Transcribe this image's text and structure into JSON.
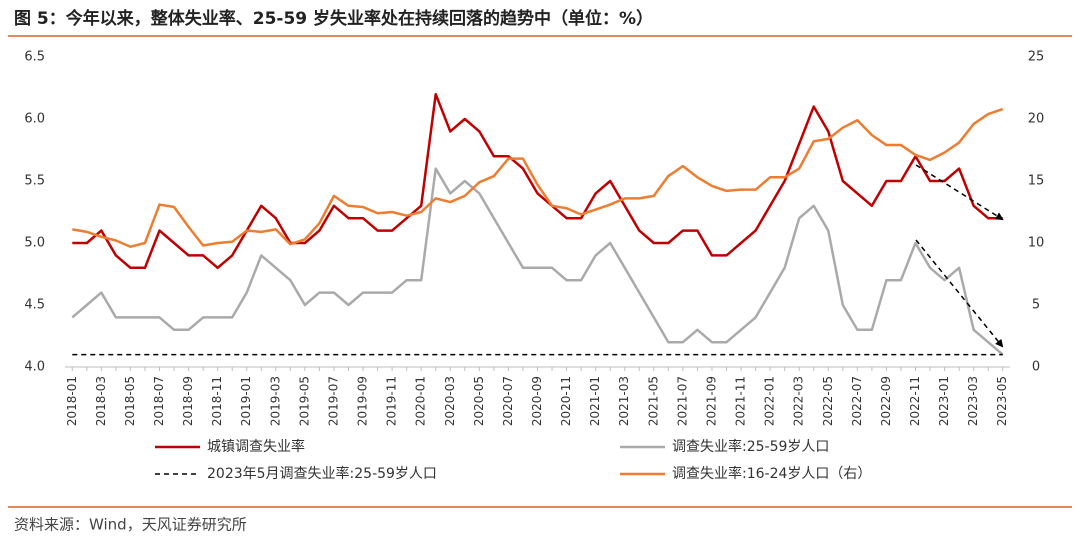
{
  "chart_data": {
    "type": "line",
    "title": "图 5：今年以来，整体失业率、25-59 岁失业率处在持续回落的趋势中（单位：%）",
    "source": "资料来源：Wind，天风证券研究所",
    "categories": [
      "2018-01",
      null,
      "2018-03",
      null,
      "2018-05",
      null,
      "2018-07",
      null,
      "2018-09",
      null,
      "2018-11",
      null,
      "2019-01",
      null,
      "2019-03",
      null,
      "2019-05",
      null,
      "2019-07",
      null,
      "2019-09",
      null,
      "2019-11",
      null,
      "2020-01",
      null,
      "2020-03",
      null,
      "2020-05",
      null,
      "2020-07",
      null,
      "2020-09",
      null,
      "2020-11",
      null,
      "2021-01",
      null,
      "2021-03",
      null,
      "2021-05",
      null,
      "2021-07",
      null,
      "2021-09",
      null,
      "2021-11",
      null,
      "2022-01",
      null,
      "2022-03",
      null,
      "2022-05",
      null,
      "2022-07",
      null,
      "2022-09",
      null,
      "2022-11",
      null,
      "2023-01",
      null,
      "2023-03",
      null,
      "2023-05"
    ],
    "series": [
      {
        "name": "城镇调查失业率",
        "color": "#c00000",
        "width": 2.5,
        "values": [
          5.0,
          5.0,
          5.1,
          4.9,
          4.8,
          4.8,
          5.1,
          5.0,
          4.9,
          4.9,
          4.8,
          4.9,
          5.1,
          5.3,
          5.2,
          5.0,
          5.0,
          5.1,
          5.3,
          5.2,
          5.2,
          5.1,
          5.1,
          5.2,
          5.3,
          6.2,
          5.9,
          6.0,
          5.9,
          5.7,
          5.7,
          5.6,
          5.4,
          5.3,
          5.2,
          5.2,
          5.4,
          5.5,
          5.3,
          5.1,
          5.0,
          5.0,
          5.1,
          5.1,
          4.9,
          4.9,
          5.0,
          5.1,
          5.3,
          5.5,
          5.8,
          6.1,
          5.9,
          5.5,
          5.4,
          5.3,
          5.5,
          5.5,
          5.7,
          5.5,
          5.5,
          5.6,
          5.3,
          5.2,
          5.2
        ]
      },
      {
        "name": "调查失业率:25-59岁人口",
        "color": "#aaaaaa",
        "width": 2.5,
        "values": [
          4.4,
          4.5,
          4.6,
          4.4,
          4.4,
          4.4,
          4.4,
          4.3,
          4.3,
          4.4,
          4.4,
          4.4,
          4.6,
          4.9,
          4.8,
          4.7,
          4.5,
          4.6,
          4.6,
          4.5,
          4.6,
          4.6,
          4.6,
          4.7,
          4.7,
          5.6,
          5.4,
          5.5,
          5.4,
          5.2,
          5.0,
          4.8,
          4.8,
          4.8,
          4.7,
          4.7,
          4.9,
          5.0,
          4.8,
          4.6,
          4.4,
          4.2,
          4.2,
          4.3,
          4.2,
          4.2,
          4.3,
          4.4,
          4.6,
          4.8,
          5.2,
          5.3,
          5.1,
          4.5,
          4.3,
          4.3,
          4.7,
          4.7,
          5.0,
          4.8,
          4.7,
          4.8,
          4.3,
          4.2,
          4.1
        ]
      },
      {
        "name": "2023年5月调查失业率:25-59岁人口",
        "color": "#000000",
        "width": 1.5,
        "dashed": true,
        "values": [
          4.1,
          4.1,
          4.1,
          4.1,
          4.1,
          4.1,
          4.1,
          4.1,
          4.1,
          4.1,
          4.1,
          4.1,
          4.1,
          4.1,
          4.1,
          4.1,
          4.1,
          4.1,
          4.1,
          4.1,
          4.1,
          4.1,
          4.1,
          4.1,
          4.1,
          4.1,
          4.1,
          4.1,
          4.1,
          4.1,
          4.1,
          4.1,
          4.1,
          4.1,
          4.1,
          4.1,
          4.1,
          4.1,
          4.1,
          4.1,
          4.1,
          4.1,
          4.1,
          4.1,
          4.1,
          4.1,
          4.1,
          4.1,
          4.1,
          4.1,
          4.1,
          4.1,
          4.1,
          4.1,
          4.1,
          4.1,
          4.1,
          4.1,
          4.1,
          4.1,
          4.1,
          4.1,
          4.1,
          4.1,
          4.1
        ]
      },
      {
        "name": "调查失业率:16-24岁人口（右）",
        "color": "#ed7d31",
        "width": 2.5,
        "axis": "y2",
        "values": [
          11.1,
          10.9,
          10.5,
          10.2,
          9.7,
          10.0,
          13.1,
          12.9,
          11.3,
          9.8,
          10.0,
          10.1,
          11.0,
          10.9,
          11.1,
          9.9,
          10.3,
          11.6,
          13.8,
          13.0,
          12.9,
          12.4,
          12.5,
          12.2,
          12.5,
          13.6,
          13.3,
          13.8,
          14.9,
          15.4,
          16.8,
          16.8,
          14.7,
          13.0,
          12.8,
          12.3,
          12.7,
          13.1,
          13.6,
          13.6,
          13.8,
          15.4,
          16.2,
          15.3,
          14.6,
          14.2,
          14.3,
          14.3,
          15.3,
          15.3,
          16.0,
          18.2,
          18.4,
          19.3,
          19.9,
          18.7,
          17.9,
          17.9,
          17.1,
          16.7,
          17.3,
          18.1,
          19.6,
          20.4,
          20.8
        ]
      }
    ],
    "ylim": [
      4.0,
      6.5
    ],
    "yticks": [
      {
        "value": 4.0,
        "label": "4.0"
      },
      4.5,
      {
        "value": 5.0,
        "label": "5.0"
      },
      5.5,
      {
        "value": 6.0,
        "label": "6.0"
      },
      6.5
    ],
    "y2lim": [
      0,
      25
    ],
    "y2ticks": [
      0,
      5,
      10,
      15,
      20,
      25
    ],
    "grid": false
  }
}
